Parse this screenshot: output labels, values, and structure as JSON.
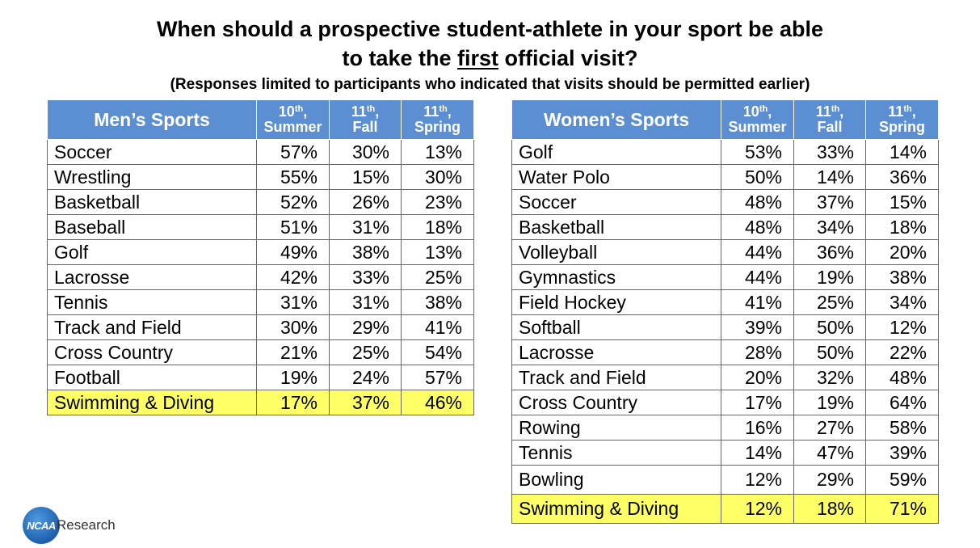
{
  "title": {
    "line1": "When should a prospective student-athlete in your sport be able",
    "line2_before": "to take the ",
    "line2_emph": "first",
    "line2_after": " official visit?",
    "subtitle": "(Responses limited to participants who indicated that visits should be permitted earlier)"
  },
  "columns": {
    "c1": {
      "sup_prefix": "10",
      "sup": "th",
      "suffix": ",",
      "label": "Summer"
    },
    "c2": {
      "sup_prefix": "11",
      "sup": "th",
      "suffix": ",",
      "label": "Fall"
    },
    "c3": {
      "sup_prefix": "11",
      "sup": "th",
      "suffix": ",",
      "label": "Spring"
    }
  },
  "men": {
    "header": "Men’s Sports",
    "rows": [
      {
        "sport": "Soccer",
        "summer": "57%",
        "fall": "30%",
        "spring": "13%"
      },
      {
        "sport": "Wrestling",
        "summer": "55%",
        "fall": "15%",
        "spring": "30%"
      },
      {
        "sport": "Basketball",
        "summer": "52%",
        "fall": "26%",
        "spring": "23%"
      },
      {
        "sport": "Baseball",
        "summer": "51%",
        "fall": "31%",
        "spring": "18%"
      },
      {
        "sport": "Golf",
        "summer": "49%",
        "fall": "38%",
        "spring": "13%"
      },
      {
        "sport": "Lacrosse",
        "summer": "42%",
        "fall": "33%",
        "spring": "25%"
      },
      {
        "sport": "Tennis",
        "summer": "31%",
        "fall": "31%",
        "spring": "38%"
      },
      {
        "sport": "Track and Field",
        "summer": "30%",
        "fall": "29%",
        "spring": "41%"
      },
      {
        "sport": "Cross Country",
        "summer": "21%",
        "fall": "25%",
        "spring": "54%"
      },
      {
        "sport": "Football",
        "summer": "19%",
        "fall": "24%",
        "spring": "57%"
      },
      {
        "sport": "Swimming & Diving",
        "summer": "17%",
        "fall": "37%",
        "spring": "46%"
      }
    ]
  },
  "women": {
    "header": "Women’s Sports",
    "rows": [
      {
        "sport": "Golf",
        "summer": "53%",
        "fall": "33%",
        "spring": "14%"
      },
      {
        "sport": "Water Polo",
        "summer": "50%",
        "fall": "14%",
        "spring": "36%"
      },
      {
        "sport": "Soccer",
        "summer": "48%",
        "fall": "37%",
        "spring": "15%"
      },
      {
        "sport": "Basketball",
        "summer": "48%",
        "fall": "34%",
        "spring": "18%"
      },
      {
        "sport": "Volleyball",
        "summer": "44%",
        "fall": "36%",
        "spring": "20%"
      },
      {
        "sport": "Gymnastics",
        "summer": "44%",
        "fall": "19%",
        "spring": "38%"
      },
      {
        "sport": "Field Hockey",
        "summer": "41%",
        "fall": "25%",
        "spring": "34%"
      },
      {
        "sport": "Softball",
        "summer": "39%",
        "fall": "50%",
        "spring": "12%"
      },
      {
        "sport": "Lacrosse",
        "summer": "28%",
        "fall": "50%",
        "spring": "22%"
      },
      {
        "sport": "Track and Field",
        "summer": "20%",
        "fall": "32%",
        "spring": "48%"
      },
      {
        "sport": "Cross Country",
        "summer": "17%",
        "fall": "19%",
        "spring": "64%"
      },
      {
        "sport": "Rowing",
        "summer": "16%",
        "fall": "27%",
        "spring": "58%"
      },
      {
        "sport": "Tennis",
        "summer": "14%",
        "fall": "47%",
        "spring": "39%"
      },
      {
        "sport": "Bowling",
        "summer": "12%",
        "fall": "29%",
        "spring": "59%"
      },
      {
        "sport": "Swimming & Diving",
        "summer": "12%",
        "fall": "18%",
        "spring": "71%"
      }
    ]
  },
  "highlight_color": "#ffff66",
  "header_color": "#5b8fd2",
  "logo": {
    "mark": "NCAA",
    "word": "Research"
  }
}
